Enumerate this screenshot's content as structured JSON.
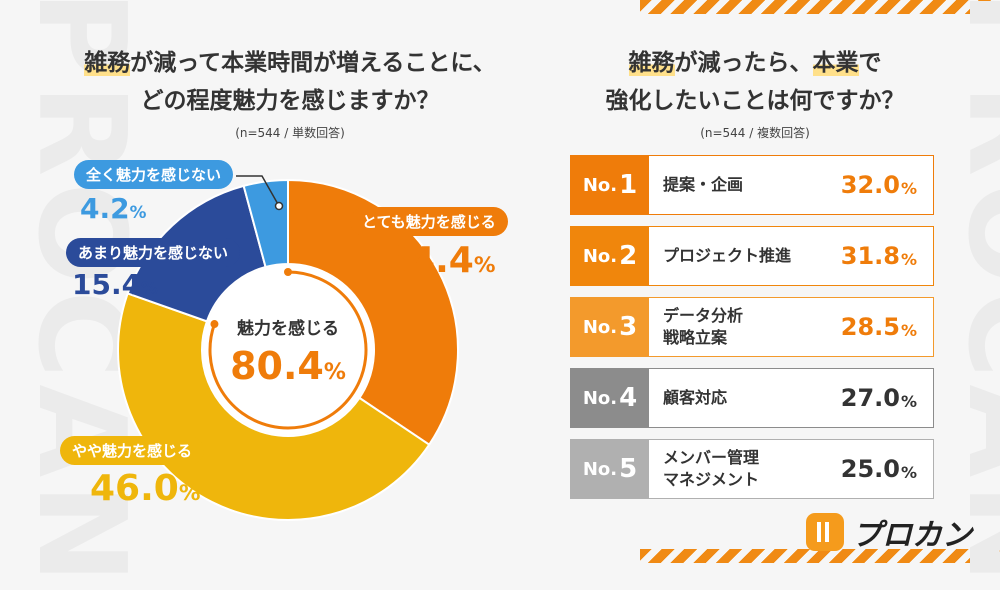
{
  "left_title": {
    "hl1": "雑務",
    "line1_rest": "が減って本業時間が増えることに、",
    "line2": "どの程度魅力を感じますか？"
  },
  "left_note": "(n=544 / 単数回答)",
  "right_title": {
    "hl1": "雑務",
    "part1": "が減ったら、",
    "hl2": "本業",
    "part2": "で",
    "line2": "強化したいことは何ですか？"
  },
  "right_note": "(n=544 / 複数回答)",
  "donut_center": {
    "label": "魅力を感じる",
    "value": "80.4",
    "unit": "%"
  },
  "brand": {
    "name": "プロカン",
    "bg_word": "PROCAN"
  },
  "colors": {
    "orange": "#ef7c0a",
    "yellow": "#efb60c",
    "navy": "#2b4b9a",
    "sky": "#3d9ae0",
    "gray": "#9a9a9a"
  },
  "chart_data": [
    {
      "type": "pie",
      "slices": [
        {
          "label": "とても魅力を感じる",
          "value": 34.4,
          "display": "34.4",
          "unit": "%",
          "color": "#ef7c0a"
        },
        {
          "label": "やや魅力を感じる",
          "value": 46.0,
          "display": "46.0",
          "unit": "%",
          "color": "#efb60c"
        },
        {
          "label": "あまり魅力を感じない",
          "value": 15.4,
          "display": "15.4",
          "unit": "%",
          "color": "#2b4b9a"
        },
        {
          "label": "全く魅力を感じない",
          "value": 4.2,
          "display": "4.2",
          "unit": "%",
          "color": "#3d9ae0"
        }
      ]
    },
    {
      "type": "table",
      "rows": [
        {
          "prefix": "No.",
          "rank": "1",
          "item_lines": [
            "提案・企画"
          ],
          "value": "32.0",
          "unit": "%",
          "color": "#ef7c0a"
        },
        {
          "prefix": "No.",
          "rank": "2",
          "item_lines": [
            "プロジェクト推進"
          ],
          "value": "31.8",
          "unit": "%",
          "color": "#f0860c"
        },
        {
          "prefix": "No.",
          "rank": "3",
          "item_lines": [
            "データ分析",
            "戦略立案"
          ],
          "value": "28.5",
          "unit": "%",
          "color": "#f39a2c"
        },
        {
          "prefix": "No.",
          "rank": "4",
          "item_lines": [
            "顧客対応"
          ],
          "value": "27.0",
          "unit": "%",
          "color": "#8c8c8c"
        },
        {
          "prefix": "No.",
          "rank": "5",
          "item_lines": [
            "メンバー管理",
            "マネジメント"
          ],
          "value": "25.0",
          "unit": "%",
          "color": "#b0b0b0"
        }
      ]
    }
  ]
}
